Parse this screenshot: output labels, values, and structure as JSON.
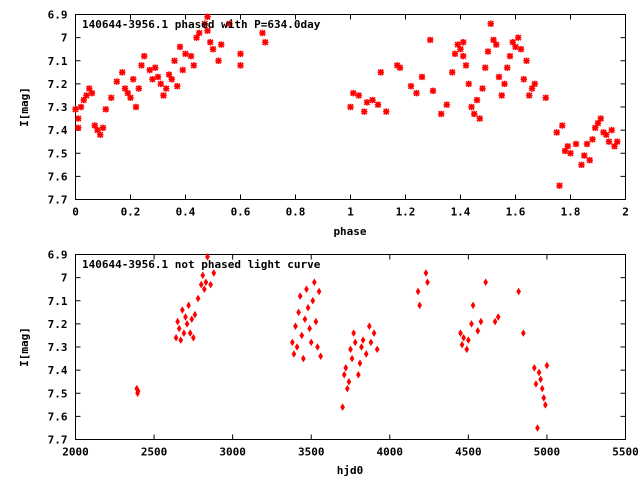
{
  "chart_data": [
    {
      "type": "scatter",
      "title": "140644-3956.1 phased with P=634.0day",
      "xlabel": "phase",
      "ylabel": "I[mag]",
      "xlim": [
        0,
        2
      ],
      "ylim": [
        7.7,
        6.9
      ],
      "y_inverted": true,
      "xticks": [
        0,
        0.2,
        0.4,
        0.6,
        0.8,
        1,
        1.2,
        1.4,
        1.6,
        1.8,
        2
      ],
      "xtick_labels": [
        "0",
        "0.2",
        "0.4",
        "0.6",
        "0.8",
        "1",
        "1.2",
        "1.4",
        "1.6",
        "1.8",
        "2"
      ],
      "yticks": [
        6.9,
        7,
        7.1,
        7.2,
        7.3,
        7.4,
        7.5,
        7.6,
        7.7
      ],
      "ytick_labels": [
        "6.9",
        "7",
        "7.1",
        "7.2",
        "7.3",
        "7.4",
        "7.5",
        "7.6",
        "7.7"
      ],
      "grid": false,
      "marker_color": "#ff0000",
      "points": [
        [
          0.0,
          7.31
        ],
        [
          0.01,
          7.35
        ],
        [
          0.01,
          7.39
        ],
        [
          0.02,
          7.3
        ],
        [
          0.03,
          7.27
        ],
        [
          0.04,
          7.25
        ],
        [
          0.05,
          7.22
        ],
        [
          0.06,
          7.24
        ],
        [
          0.07,
          7.38
        ],
        [
          0.08,
          7.4
        ],
        [
          0.09,
          7.42
        ],
        [
          0.1,
          7.39
        ],
        [
          0.11,
          7.31
        ],
        [
          0.13,
          7.26
        ],
        [
          0.15,
          7.19
        ],
        [
          0.17,
          7.15
        ],
        [
          0.18,
          7.22
        ],
        [
          0.19,
          7.24
        ],
        [
          0.2,
          7.26
        ],
        [
          0.21,
          7.18
        ],
        [
          0.22,
          7.3
        ],
        [
          0.23,
          7.22
        ],
        [
          0.24,
          7.12
        ],
        [
          0.25,
          7.08
        ],
        [
          0.27,
          7.14
        ],
        [
          0.28,
          7.18
        ],
        [
          0.29,
          7.13
        ],
        [
          0.3,
          7.17
        ],
        [
          0.31,
          7.2
        ],
        [
          0.32,
          7.25
        ],
        [
          0.33,
          7.22
        ],
        [
          0.34,
          7.16
        ],
        [
          0.35,
          7.18
        ],
        [
          0.36,
          7.1
        ],
        [
          0.37,
          7.21
        ],
        [
          0.38,
          7.04
        ],
        [
          0.39,
          7.14
        ],
        [
          0.4,
          7.07
        ],
        [
          0.42,
          7.08
        ],
        [
          0.43,
          7.12
        ],
        [
          0.44,
          7.0
        ],
        [
          0.45,
          6.98
        ],
        [
          0.47,
          6.94
        ],
        [
          0.48,
          6.97
        ],
        [
          0.48,
          6.91
        ],
        [
          0.49,
          7.02
        ],
        [
          0.5,
          7.05
        ],
        [
          0.52,
          7.1
        ],
        [
          0.53,
          7.03
        ],
        [
          0.56,
          6.94
        ],
        [
          0.6,
          7.07
        ],
        [
          0.6,
          7.12
        ],
        [
          0.68,
          6.98
        ],
        [
          0.69,
          7.02
        ],
        [
          1.0,
          7.3
        ],
        [
          1.01,
          7.24
        ],
        [
          1.03,
          7.25
        ],
        [
          1.05,
          7.32
        ],
        [
          1.06,
          7.28
        ],
        [
          1.08,
          7.27
        ],
        [
          1.1,
          7.29
        ],
        [
          1.11,
          7.15
        ],
        [
          1.13,
          7.32
        ],
        [
          1.17,
          7.12
        ],
        [
          1.18,
          7.13
        ],
        [
          1.22,
          7.21
        ],
        [
          1.24,
          7.24
        ],
        [
          1.26,
          7.17
        ],
        [
          1.29,
          7.01
        ],
        [
          1.3,
          7.23
        ],
        [
          1.33,
          7.33
        ],
        [
          1.35,
          7.29
        ],
        [
          1.37,
          7.15
        ],
        [
          1.38,
          7.07
        ],
        [
          1.39,
          7.03
        ],
        [
          1.4,
          7.05
        ],
        [
          1.41,
          7.08
        ],
        [
          1.41,
          7.02
        ],
        [
          1.42,
          7.12
        ],
        [
          1.43,
          7.2
        ],
        [
          1.44,
          7.3
        ],
        [
          1.45,
          7.33
        ],
        [
          1.46,
          7.27
        ],
        [
          1.47,
          7.35
        ],
        [
          1.48,
          7.22
        ],
        [
          1.49,
          7.13
        ],
        [
          1.5,
          7.06
        ],
        [
          1.51,
          6.94
        ],
        [
          1.52,
          7.01
        ],
        [
          1.53,
          7.03
        ],
        [
          1.54,
          7.17
        ],
        [
          1.55,
          7.25
        ],
        [
          1.56,
          7.2
        ],
        [
          1.57,
          7.13
        ],
        [
          1.58,
          7.08
        ],
        [
          1.59,
          7.02
        ],
        [
          1.6,
          7.04
        ],
        [
          1.61,
          7.0
        ],
        [
          1.62,
          7.05
        ],
        [
          1.63,
          7.18
        ],
        [
          1.64,
          7.1
        ],
        [
          1.65,
          7.25
        ],
        [
          1.66,
          7.22
        ],
        [
          1.67,
          7.2
        ],
        [
          1.71,
          7.26
        ],
        [
          1.75,
          7.41
        ],
        [
          1.76,
          7.64
        ],
        [
          1.77,
          7.38
        ],
        [
          1.78,
          7.49
        ],
        [
          1.79,
          7.47
        ],
        [
          1.8,
          7.5
        ],
        [
          1.82,
          7.46
        ],
        [
          1.84,
          7.55
        ],
        [
          1.85,
          7.51
        ],
        [
          1.86,
          7.46
        ],
        [
          1.87,
          7.53
        ],
        [
          1.88,
          7.44
        ],
        [
          1.89,
          7.39
        ],
        [
          1.9,
          7.37
        ],
        [
          1.91,
          7.35
        ],
        [
          1.92,
          7.41
        ],
        [
          1.93,
          7.42
        ],
        [
          1.94,
          7.45
        ],
        [
          1.95,
          7.4
        ],
        [
          1.96,
          7.47
        ],
        [
          1.97,
          7.45
        ]
      ]
    },
    {
      "type": "scatter",
      "title": "140644-3956.1 not phased light curve",
      "xlabel": "hjd0",
      "ylabel": "I[mag]",
      "xlim": [
        2000,
        5500
      ],
      "ylim": [
        7.7,
        6.9
      ],
      "y_inverted": true,
      "xticks": [
        2000,
        2500,
        3000,
        3500,
        4000,
        4500,
        5000,
        5500
      ],
      "xtick_labels": [
        "2000",
        "2500",
        "3000",
        "3500",
        "4000",
        "4500",
        "5000",
        "5500"
      ],
      "yticks": [
        6.9,
        7,
        7.1,
        7.2,
        7.3,
        7.4,
        7.5,
        7.6,
        7.7
      ],
      "ytick_labels": [
        "6.9",
        "7",
        "7.1",
        "7.2",
        "7.3",
        "7.4",
        "7.5",
        "7.6",
        "7.7"
      ],
      "grid": false,
      "marker_color": "#ff0000",
      "points": [
        [
          2390,
          7.48
        ],
        [
          2395,
          7.5
        ],
        [
          2398,
          7.49
        ],
        [
          2640,
          7.26
        ],
        [
          2650,
          7.19
        ],
        [
          2660,
          7.22
        ],
        [
          2670,
          7.27
        ],
        [
          2680,
          7.14
        ],
        [
          2690,
          7.24
        ],
        [
          2700,
          7.17
        ],
        [
          2710,
          7.2
        ],
        [
          2720,
          7.12
        ],
        [
          2730,
          7.24
        ],
        [
          2740,
          7.18
        ],
        [
          2750,
          7.26
        ],
        [
          2760,
          7.16
        ],
        [
          2780,
          7.09
        ],
        [
          2800,
          7.03
        ],
        [
          2810,
          6.99
        ],
        [
          2820,
          7.05
        ],
        [
          2830,
          7.02
        ],
        [
          2840,
          6.91
        ],
        [
          2860,
          7.03
        ],
        [
          2880,
          6.98
        ],
        [
          3380,
          7.28
        ],
        [
          3390,
          7.33
        ],
        [
          3400,
          7.21
        ],
        [
          3410,
          7.3
        ],
        [
          3420,
          7.15
        ],
        [
          3430,
          7.08
        ],
        [
          3440,
          7.25
        ],
        [
          3450,
          7.35
        ],
        [
          3460,
          7.18
        ],
        [
          3470,
          7.05
        ],
        [
          3480,
          7.13
        ],
        [
          3490,
          7.22
        ],
        [
          3500,
          7.28
        ],
        [
          3510,
          7.1
        ],
        [
          3520,
          7.02
        ],
        [
          3530,
          7.19
        ],
        [
          3540,
          7.3
        ],
        [
          3550,
          7.06
        ],
        [
          3560,
          7.34
        ],
        [
          3700,
          7.56
        ],
        [
          3710,
          7.42
        ],
        [
          3720,
          7.39
        ],
        [
          3730,
          7.48
        ],
        [
          3740,
          7.45
        ],
        [
          3750,
          7.31
        ],
        [
          3760,
          7.35
        ],
        [
          3770,
          7.24
        ],
        [
          3780,
          7.28
        ],
        [
          3800,
          7.42
        ],
        [
          3810,
          7.37
        ],
        [
          3820,
          7.3
        ],
        [
          3830,
          7.27
        ],
        [
          3850,
          7.33
        ],
        [
          3870,
          7.21
        ],
        [
          3880,
          7.28
        ],
        [
          3900,
          7.24
        ],
        [
          3920,
          7.31
        ],
        [
          4180,
          7.06
        ],
        [
          4190,
          7.12
        ],
        [
          4230,
          6.98
        ],
        [
          4240,
          7.02
        ],
        [
          4450,
          7.24
        ],
        [
          4460,
          7.29
        ],
        [
          4470,
          7.26
        ],
        [
          4490,
          7.31
        ],
        [
          4500,
          7.27
        ],
        [
          4520,
          7.2
        ],
        [
          4530,
          7.12
        ],
        [
          4560,
          7.23
        ],
        [
          4580,
          7.19
        ],
        [
          4610,
          7.02
        ],
        [
          4670,
          7.19
        ],
        [
          4690,
          7.17
        ],
        [
          4820,
          7.06
        ],
        [
          4850,
          7.24
        ],
        [
          4920,
          7.39
        ],
        [
          4930,
          7.46
        ],
        [
          4940,
          7.65
        ],
        [
          4950,
          7.41
        ],
        [
          4960,
          7.44
        ],
        [
          4970,
          7.48
        ],
        [
          4980,
          7.52
        ],
        [
          4990,
          7.55
        ],
        [
          5000,
          7.38
        ]
      ]
    }
  ]
}
